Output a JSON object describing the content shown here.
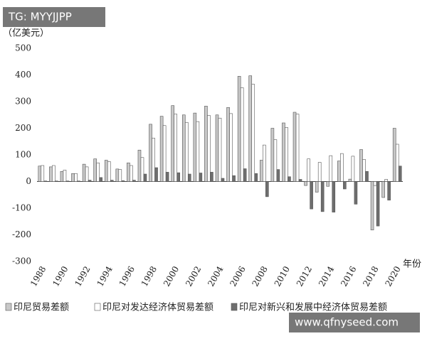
{
  "chart_data": {
    "type": "bar",
    "y_label": "（亿美元）",
    "x_label": "年份",
    "categories": [
      "1988",
      null,
      "1990",
      null,
      "1992",
      null,
      "1994",
      null,
      "1996",
      null,
      "1998",
      null,
      "2000",
      null,
      "2002",
      null,
      "2004",
      null,
      "2006",
      null,
      "2008",
      null,
      "2010",
      null,
      "2012",
      null,
      "2014",
      null,
      "2016",
      null,
      "2018",
      null,
      "2020"
    ],
    "series": [
      {
        "name": "印尼贸易差额",
        "color": "#c8c8c8",
        "values": [
          58,
          55,
          38,
          30,
          65,
          85,
          80,
          47,
          70,
          118,
          215,
          245,
          285,
          250,
          257,
          283,
          250,
          278,
          395,
          397,
          80,
          200,
          220,
          260,
          -15,
          -40,
          -18,
          77,
          9,
          120,
          -182,
          -60,
          200
        ]
      },
      {
        "name": "印尼对发达经济体贸易差额",
        "color": "#ffffff",
        "values": [
          60,
          60,
          43,
          30,
          55,
          70,
          75,
          45,
          60,
          90,
          163,
          210,
          253,
          222,
          225,
          248,
          238,
          255,
          352,
          365,
          137,
          157,
          203,
          253,
          85,
          72,
          97,
          105,
          95,
          83,
          -15,
          8,
          140
        ]
      },
      {
        "name": "印尼对新兴和发展中经济体贸易差额",
        "color": "#6e6e6e",
        "values": [
          2,
          2,
          2,
          2,
          5,
          15,
          5,
          3,
          5,
          28,
          52,
          35,
          33,
          28,
          32,
          35,
          12,
          22,
          48,
          30,
          -57,
          45,
          18,
          8,
          -103,
          -113,
          -115,
          -28,
          -85,
          38,
          -167,
          -70,
          58
        ]
      }
    ],
    "ylim": [
      -300,
      500
    ],
    "yticks": [
      -300,
      -200,
      -100,
      0,
      100,
      200,
      300,
      400,
      500
    ],
    "grid": false
  },
  "watermarks": [
    "TG: MYYJJPP",
    "www.qfnyseed.com"
  ]
}
